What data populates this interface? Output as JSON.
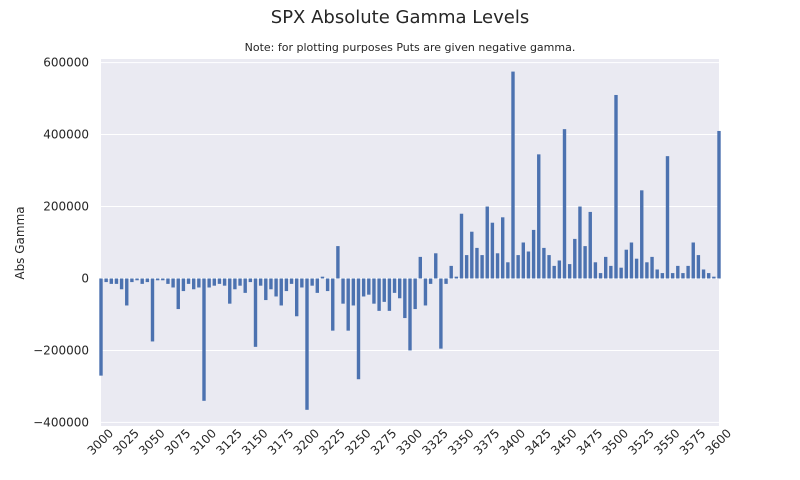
{
  "colors": {
    "plot_bg": "#eaeaf2",
    "bar": "#4c72b0",
    "grid": "#ffffff",
    "text": "#262626"
  },
  "chart_data": {
    "type": "bar",
    "title": "SPX Absolute Gamma Levels",
    "subtitle": "Note: for plotting purposes Puts are given negative gamma.",
    "xlabel": "",
    "ylabel": "Abs Gamma",
    "xlim": [
      3000,
      3600
    ],
    "ylim": [
      -410000,
      610000
    ],
    "grid": true,
    "x_ticks": [
      "3000",
      "3025",
      "3050",
      "3075",
      "3100",
      "3125",
      "3150",
      "3175",
      "3200",
      "3225",
      "3250",
      "3275",
      "3300",
      "3325",
      "3350",
      "3375",
      "3400",
      "3425",
      "3450",
      "3475",
      "3500",
      "3525",
      "3550",
      "3575",
      "3600"
    ],
    "y_ticks": [
      {
        "value": -400000,
        "label": "−400000"
      },
      {
        "value": -200000,
        "label": "−200000"
      },
      {
        "value": 0,
        "label": "0"
      },
      {
        "value": 200000,
        "label": "200000"
      },
      {
        "value": 400000,
        "label": "400000"
      },
      {
        "value": 600000,
        "label": "600000"
      }
    ],
    "strike_step": 5,
    "x": [
      3000,
      3005,
      3010,
      3015,
      3020,
      3025,
      3030,
      3035,
      3040,
      3045,
      3050,
      3055,
      3060,
      3065,
      3070,
      3075,
      3080,
      3085,
      3090,
      3095,
      3100,
      3105,
      3110,
      3115,
      3120,
      3125,
      3130,
      3135,
      3140,
      3145,
      3150,
      3155,
      3160,
      3165,
      3170,
      3175,
      3180,
      3185,
      3190,
      3195,
      3200,
      3205,
      3210,
      3215,
      3220,
      3225,
      3230,
      3235,
      3240,
      3245,
      3250,
      3255,
      3260,
      3265,
      3270,
      3275,
      3280,
      3285,
      3290,
      3295,
      3300,
      3305,
      3310,
      3315,
      3320,
      3325,
      3330,
      3335,
      3340,
      3345,
      3350,
      3355,
      3360,
      3365,
      3370,
      3375,
      3380,
      3385,
      3390,
      3395,
      3400,
      3405,
      3410,
      3415,
      3420,
      3425,
      3430,
      3435,
      3440,
      3445,
      3450,
      3455,
      3460,
      3465,
      3470,
      3475,
      3480,
      3485,
      3490,
      3495,
      3500,
      3505,
      3510,
      3515,
      3520,
      3525,
      3530,
      3535,
      3540,
      3545,
      3550,
      3555,
      3560,
      3565,
      3570,
      3575,
      3580,
      3585,
      3590,
      3595,
      3600
    ],
    "values": [
      -270000,
      -10000,
      -15000,
      -15000,
      -30000,
      -75000,
      -10000,
      -5000,
      -15000,
      -10000,
      -175000,
      -5000,
      -5000,
      -15000,
      -25000,
      -85000,
      -35000,
      -15000,
      -30000,
      -25000,
      -340000,
      -25000,
      -20000,
      -15000,
      -20000,
      -70000,
      -30000,
      -20000,
      -40000,
      -10000,
      -190000,
      -20000,
      -60000,
      -30000,
      -50000,
      -75000,
      -35000,
      -15000,
      -105000,
      -25000,
      -365000,
      -20000,
      -40000,
      5000,
      -35000,
      -145000,
      90000,
      -70000,
      -145000,
      -75000,
      -280000,
      -50000,
      -45000,
      -70000,
      -90000,
      -65000,
      -90000,
      -40000,
      -55000,
      -110000,
      -200000,
      -85000,
      60000,
      -75000,
      -15000,
      70000,
      -195000,
      -15000,
      35000,
      5000,
      180000,
      65000,
      130000,
      85000,
      65000,
      200000,
      155000,
      70000,
      170000,
      45000,
      575000,
      65000,
      100000,
      75000,
      135000,
      345000,
      85000,
      65000,
      35000,
      50000,
      415000,
      40000,
      110000,
      200000,
      90000,
      185000,
      45000,
      15000,
      60000,
      35000,
      510000,
      30000,
      80000,
      100000,
      55000,
      245000,
      45000,
      60000,
      25000,
      15000,
      340000,
      15000,
      35000,
      15000,
      35000,
      100000,
      65000,
      25000,
      15000,
      5000,
      410000
    ]
  }
}
